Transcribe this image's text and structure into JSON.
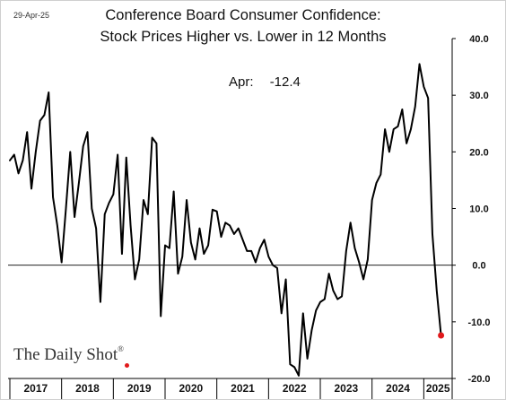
{
  "date_label": "29-Apr-25",
  "title_line1": "Conference Board Consumer Confidence:",
  "title_line2": "Stock Prices Higher vs. Lower in 12 Months",
  "annotation": {
    "label": "Apr:",
    "value": "-12.4"
  },
  "watermark": "The Daily Shot",
  "watermark_mark": "®",
  "colors": {
    "line": "#000000",
    "highlight": "#e0191b",
    "axis": "#000000"
  },
  "chart_data": {
    "type": "line",
    "title": "Conference Board Consumer Confidence: Stock Prices Higher vs. Lower in 12 Months",
    "xlabel": "",
    "ylabel": "",
    "ylim": [
      -20,
      40
    ],
    "yticks": [
      -20,
      -10,
      0,
      10,
      20,
      30,
      40
    ],
    "ytick_labels": [
      "-20.0",
      "-10.0",
      "0.0",
      "10.0",
      "20.0",
      "30.0",
      "40.0"
    ],
    "y_axis_side": "right",
    "x_start": "2017-01",
    "x_end": "2025-04",
    "xtick_labels": [
      "2017",
      "2018",
      "2019",
      "2020",
      "2021",
      "2022",
      "2023",
      "2024",
      "2025"
    ],
    "last_point_highlighted": true,
    "series": [
      {
        "values": [
          18.5,
          19.5,
          16.2,
          18.5,
          23.5,
          13.5,
          20.0,
          25.5,
          26.5,
          30.5,
          12.0,
          7.0,
          0.5,
          10.0,
          20.0,
          8.5,
          14.5,
          21.0,
          23.5,
          10.0,
          6.5,
          -6.5,
          9.0,
          11.0,
          12.5,
          19.5,
          2.0,
          19.0,
          7.0,
          -2.5,
          1.0,
          11.5,
          9.0,
          22.5,
          21.5,
          -9.0,
          3.5,
          3.0,
          13.0,
          -1.5,
          1.5,
          11.5,
          4.0,
          1.0,
          6.5,
          2.0,
          3.5,
          9.8,
          9.5,
          5.0,
          7.5,
          7.0,
          5.5,
          6.5,
          4.5,
          2.5,
          2.5,
          0.5,
          3.0,
          4.5,
          1.5,
          0.0,
          -0.5,
          -8.5,
          -2.5,
          -17.5,
          -18.0,
          -19.5,
          -8.5,
          -16.5,
          -11.5,
          -8.0,
          -6.5,
          -6.0,
          -1.5,
          -4.5,
          -6.0,
          -5.5,
          2.5,
          7.5,
          3.0,
          0.5,
          -2.5,
          1.0,
          11.5,
          14.5,
          16.0,
          24.0,
          20.0,
          24.0,
          24.5,
          27.5,
          21.5,
          24.0,
          28.0,
          35.5,
          31.5,
          29.5,
          5.5,
          -4.5,
          -12.4
        ]
      }
    ]
  }
}
